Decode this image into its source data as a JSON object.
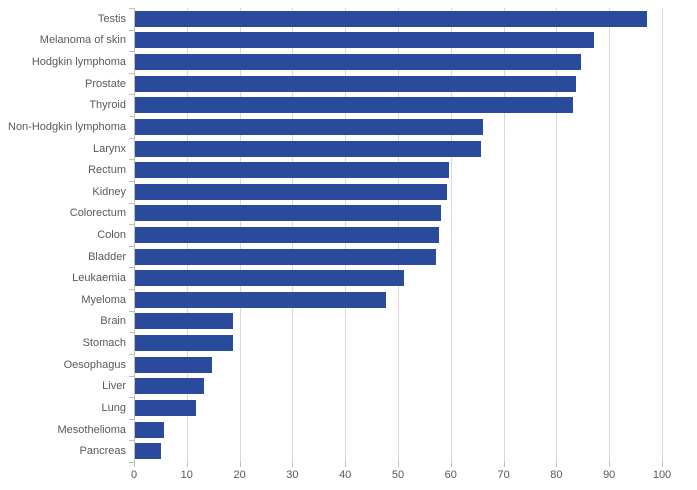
{
  "chart_data": {
    "type": "bar",
    "orientation": "horizontal",
    "title": "",
    "xlabel": "",
    "ylabel": "",
    "categories": [
      "Testis",
      "Melanoma of skin",
      "Hodgkin lymphoma",
      "Prostate",
      "Thyroid",
      "Non-Hodgkin lymphoma",
      "Larynx",
      "Rectum",
      "Kidney",
      "Colorectum",
      "Colon",
      "Bladder",
      "Leukaemia",
      "Myeloma",
      "Brain",
      "Stomach",
      "Oesophagus",
      "Liver",
      "Lung",
      "Mesothelioma",
      "Pancreas"
    ],
    "values": [
      97,
      87,
      84.5,
      83.5,
      83,
      66,
      65.5,
      59.5,
      59,
      58,
      57.5,
      57,
      51,
      47.5,
      18.5,
      18.5,
      14.5,
      13,
      11.5,
      5.5,
      5
    ],
    "xlim": [
      0,
      100
    ],
    "x_ticks": [
      0,
      10,
      20,
      30,
      40,
      50,
      60,
      70,
      80,
      90,
      100
    ],
    "grid": "vertical-on",
    "legend": "none",
    "colors": {
      "bar": "#2a4b9c",
      "gridline": "#d9d9d9",
      "axis": "#bfbfbf",
      "text": "#595959",
      "background": "#ffffff"
    }
  }
}
